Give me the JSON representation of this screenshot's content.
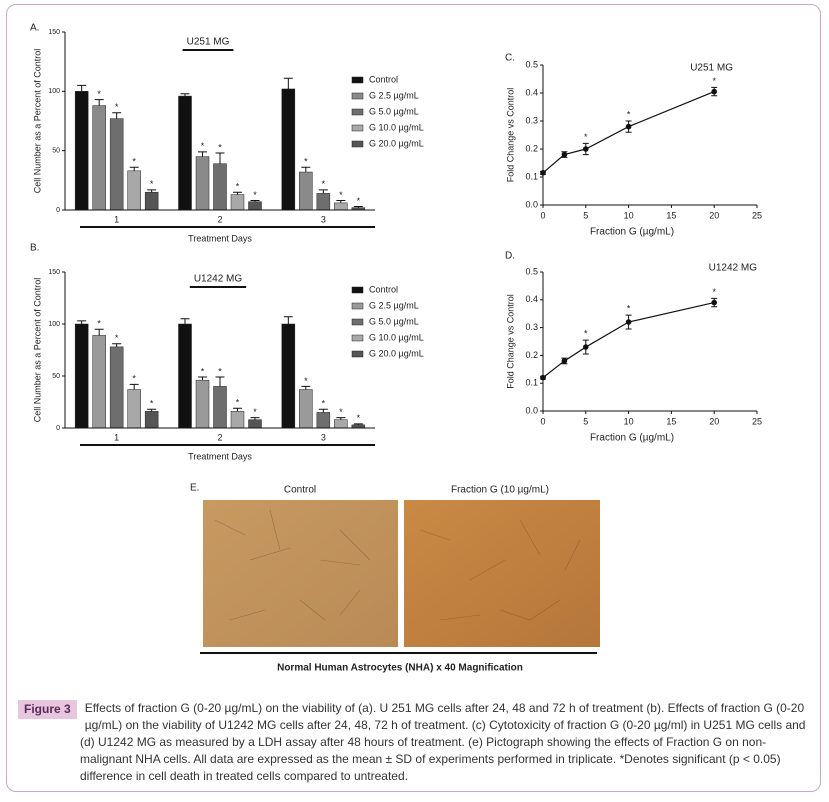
{
  "chart_data": [
    {
      "type": "bar",
      "panel": "A.",
      "title": "U251 MG",
      "xlabel": "Treatment Days",
      "ylabel": "Cell Number as a Percent of Control",
      "categories": [
        "1",
        "2",
        "3"
      ],
      "ylim": [
        0,
        150
      ],
      "yticks": [
        0,
        50,
        100,
        150
      ],
      "significance_marker": "*",
      "series": [
        {
          "name": "Control",
          "color": "#111111",
          "values": [
            100,
            96,
            102
          ],
          "errors": [
            5,
            2,
            9
          ],
          "significant": false
        },
        {
          "name": "G 2.5 µg/mL",
          "color": "#8a8a8a",
          "values": [
            88,
            45,
            32
          ],
          "errors": [
            5,
            4,
            4
          ],
          "significant": true
        },
        {
          "name": "G 5.0 µg/mL",
          "color": "#6e6e6e",
          "values": [
            77,
            39,
            14
          ],
          "errors": [
            5,
            9,
            3
          ],
          "significant": true
        },
        {
          "name": "G 10.0 µg/mL",
          "color": "#a8a8a8",
          "values": [
            33,
            13,
            6
          ],
          "errors": [
            3,
            2,
            2
          ],
          "significant": true
        },
        {
          "name": "G 20.0 µg/mL",
          "color": "#555555",
          "values": [
            15,
            7,
            2
          ],
          "errors": [
            2,
            1,
            1
          ],
          "significant": true
        }
      ]
    },
    {
      "type": "bar",
      "panel": "B.",
      "title": "U1242 MG",
      "xlabel": "Treatment Days",
      "ylabel": "Cell Number as a Percent of Control",
      "categories": [
        "1",
        "2",
        "3"
      ],
      "ylim": [
        0,
        150
      ],
      "yticks": [
        0,
        50,
        100,
        150
      ],
      "significance_marker": "*",
      "series": [
        {
          "name": "Control",
          "color": "#111111",
          "values": [
            100,
            100,
            100
          ],
          "errors": [
            3,
            5,
            7
          ],
          "significant": false
        },
        {
          "name": "G 2.5 µg/mL",
          "color": "#9a9a9a",
          "values": [
            89,
            46,
            37
          ],
          "errors": [
            6,
            3,
            3
          ],
          "significant": true
        },
        {
          "name": "G 5.0 µg/mL",
          "color": "#6e6e6e",
          "values": [
            78,
            40,
            15
          ],
          "errors": [
            3,
            9,
            3
          ],
          "significant": true
        },
        {
          "name": "G 10.0 µg/mL",
          "color": "#a8a8a8",
          "values": [
            37,
            16,
            8
          ],
          "errors": [
            5,
            3,
            2
          ],
          "significant": true
        },
        {
          "name": "G 20.0 µg/mL",
          "color": "#555555",
          "values": [
            16,
            8,
            3
          ],
          "errors": [
            2,
            2,
            1
          ],
          "significant": true
        }
      ]
    },
    {
      "type": "line",
      "panel": "C.",
      "title": "U251 MG",
      "xlabel": "Fraction G (µg/mL)",
      "ylabel": "Fold Change vs Control",
      "x": [
        0,
        2.5,
        5,
        10,
        20
      ],
      "values": [
        0.115,
        0.18,
        0.2,
        0.28,
        0.405
      ],
      "errors": [
        0.005,
        0.01,
        0.02,
        0.02,
        0.015
      ],
      "significant": [
        false,
        false,
        true,
        true,
        true
      ],
      "significance_marker": "*",
      "color": "#111111",
      "xlim": [
        0,
        25
      ],
      "xticks": [
        0,
        5,
        10,
        15,
        20,
        25
      ],
      "ylim": [
        0,
        0.5
      ],
      "yticks": [
        {
          "value": 0,
          "label": "0.0"
        },
        0.1,
        0.2,
        0.3,
        0.4,
        0.5
      ]
    },
    {
      "type": "line",
      "panel": "D.",
      "title": "U1242 MG",
      "xlabel": "Fraction G (µg/mL)",
      "ylabel": "Fold Change vs Control",
      "x": [
        0,
        2.5,
        5,
        10,
        20
      ],
      "values": [
        0.12,
        0.18,
        0.23,
        0.32,
        0.39
      ],
      "errors": [
        0.005,
        0.01,
        0.025,
        0.025,
        0.015
      ],
      "significant": [
        false,
        false,
        true,
        true,
        true
      ],
      "significance_marker": "*",
      "color": "#111111",
      "xlim": [
        0,
        25
      ],
      "xticks": [
        0,
        5,
        10,
        15,
        20,
        25
      ],
      "ylim": [
        0,
        0.5
      ],
      "yticks": [
        {
          "value": 0,
          "label": "0.0"
        },
        0.1,
        0.2,
        0.3,
        0.4,
        0.5
      ]
    }
  ],
  "figure_e": {
    "panel": "E.",
    "images": [
      "Control",
      "Fraction G (10 µg/mL)"
    ],
    "caption": "Normal Human Astrocytes (NHA) x 40 Magnification"
  },
  "caption": {
    "label": "Figure 3",
    "text": "Effects of fraction G (0-20 µg/mL) on the viability of (a). U 251 MG cells after 24, 48 and 72 h of treatment (b). Effects of fraction G (0-20 µg/mL) on the viability of U1242 MG cells after 24, 48, 72 h of treatment. (c) Cytotoxicity of fraction G (0-20 µg/ml) in U251 MG cells and (d) U1242 MG as measured by a LDH assay after 48 hours of treatment. (e) Pictograph showing the effects of Fraction G on non-malignant NHA cells. All data are expressed as the mean ± SD of experiments performed in triplicate. *Denotes significant (p < 0.05) difference in cell death in treated cells compared to untreated."
  }
}
